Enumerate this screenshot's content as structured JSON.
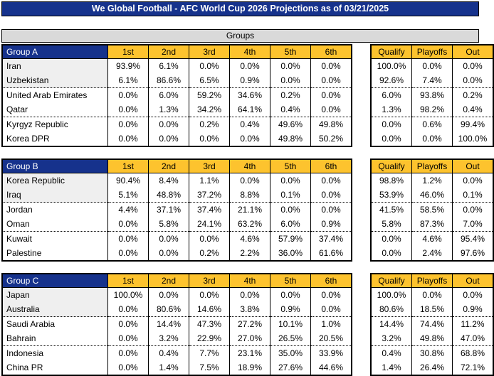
{
  "title": "We Global Football - AFC World Cup 2026 Projections as of 03/21/2025",
  "section_header": "Groups",
  "position_headers": [
    "1st",
    "2nd",
    "3rd",
    "4th",
    "5th",
    "6th"
  ],
  "summary_headers": [
    "Qualify",
    "Playoffs",
    "Out"
  ],
  "colors": {
    "header_blue": "#16328C",
    "header_gold": "#FDC32E",
    "groups_band_gray": "#D9D9D9",
    "qualified_row_shade": "#EFEFEF"
  },
  "groups": [
    {
      "label": "Group A",
      "teams": [
        {
          "name": "Iran",
          "positions": [
            "93.9%",
            "6.1%",
            "0.0%",
            "0.0%",
            "0.0%",
            "0.0%"
          ],
          "summary": [
            "100.0%",
            "0.0%",
            "0.0%"
          ]
        },
        {
          "name": "Uzbekistan",
          "positions": [
            "6.1%",
            "86.6%",
            "6.5%",
            "0.9%",
            "0.0%",
            "0.0%"
          ],
          "summary": [
            "92.6%",
            "7.4%",
            "0.0%"
          ]
        },
        {
          "name": "United Arab Emirates",
          "positions": [
            "0.0%",
            "6.0%",
            "59.2%",
            "34.6%",
            "0.2%",
            "0.0%"
          ],
          "summary": [
            "6.0%",
            "93.8%",
            "0.2%"
          ]
        },
        {
          "name": "Qatar",
          "positions": [
            "0.0%",
            "1.3%",
            "34.2%",
            "64.1%",
            "0.4%",
            "0.0%"
          ],
          "summary": [
            "1.3%",
            "98.2%",
            "0.4%"
          ]
        },
        {
          "name": "Kyrgyz Republic",
          "positions": [
            "0.0%",
            "0.0%",
            "0.2%",
            "0.4%",
            "49.6%",
            "49.8%"
          ],
          "summary": [
            "0.0%",
            "0.6%",
            "99.4%"
          ]
        },
        {
          "name": "Korea DPR",
          "positions": [
            "0.0%",
            "0.0%",
            "0.0%",
            "0.0%",
            "49.8%",
            "50.2%"
          ],
          "summary": [
            "0.0%",
            "0.0%",
            "100.0%"
          ]
        }
      ]
    },
    {
      "label": "Group B",
      "teams": [
        {
          "name": "Korea Republic",
          "positions": [
            "90.4%",
            "8.4%",
            "1.1%",
            "0.0%",
            "0.0%",
            "0.0%"
          ],
          "summary": [
            "98.8%",
            "1.2%",
            "0.0%"
          ]
        },
        {
          "name": "Iraq",
          "positions": [
            "5.1%",
            "48.8%",
            "37.2%",
            "8.8%",
            "0.1%",
            "0.0%"
          ],
          "summary": [
            "53.9%",
            "46.0%",
            "0.1%"
          ]
        },
        {
          "name": "Jordan",
          "positions": [
            "4.4%",
            "37.1%",
            "37.4%",
            "21.1%",
            "0.0%",
            "0.0%"
          ],
          "summary": [
            "41.5%",
            "58.5%",
            "0.0%"
          ]
        },
        {
          "name": "Oman",
          "positions": [
            "0.0%",
            "5.8%",
            "24.1%",
            "63.2%",
            "6.0%",
            "0.9%"
          ],
          "summary": [
            "5.8%",
            "87.3%",
            "7.0%"
          ]
        },
        {
          "name": "Kuwait",
          "positions": [
            "0.0%",
            "0.0%",
            "0.0%",
            "4.6%",
            "57.9%",
            "37.4%"
          ],
          "summary": [
            "0.0%",
            "4.6%",
            "95.4%"
          ]
        },
        {
          "name": "Palestine",
          "positions": [
            "0.0%",
            "0.0%",
            "0.2%",
            "2.2%",
            "36.0%",
            "61.6%"
          ],
          "summary": [
            "0.0%",
            "2.4%",
            "97.6%"
          ]
        }
      ]
    },
    {
      "label": "Group C",
      "teams": [
        {
          "name": "Japan",
          "positions": [
            "100.0%",
            "0.0%",
            "0.0%",
            "0.0%",
            "0.0%",
            "0.0%"
          ],
          "summary": [
            "100.0%",
            "0.0%",
            "0.0%"
          ]
        },
        {
          "name": "Australia",
          "positions": [
            "0.0%",
            "80.6%",
            "14.6%",
            "3.8%",
            "0.9%",
            "0.0%"
          ],
          "summary": [
            "80.6%",
            "18.5%",
            "0.9%"
          ]
        },
        {
          "name": "Saudi Arabia",
          "positions": [
            "0.0%",
            "14.4%",
            "47.3%",
            "27.2%",
            "10.1%",
            "1.0%"
          ],
          "summary": [
            "14.4%",
            "74.4%",
            "11.2%"
          ]
        },
        {
          "name": "Bahrain",
          "positions": [
            "0.0%",
            "3.2%",
            "22.9%",
            "27.0%",
            "26.5%",
            "20.5%"
          ],
          "summary": [
            "3.2%",
            "49.8%",
            "47.0%"
          ]
        },
        {
          "name": "Indonesia",
          "positions": [
            "0.0%",
            "0.4%",
            "7.7%",
            "23.1%",
            "35.0%",
            "33.9%"
          ],
          "summary": [
            "0.4%",
            "30.8%",
            "68.8%"
          ]
        },
        {
          "name": "China PR",
          "positions": [
            "0.0%",
            "1.4%",
            "7.5%",
            "18.9%",
            "27.6%",
            "44.6%"
          ],
          "summary": [
            "1.4%",
            "26.4%",
            "72.1%"
          ]
        }
      ]
    }
  ]
}
